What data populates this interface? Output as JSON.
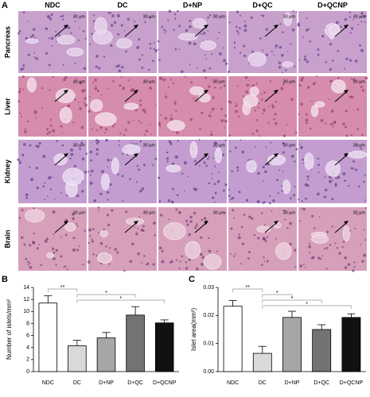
{
  "histology": {
    "panel": "A",
    "columns": [
      "NDC",
      "DC",
      "D+NP",
      "D+QC",
      "D+QCNP"
    ],
    "rows": [
      {
        "label": "Pancreas",
        "scale_labels": [
          "30 μm",
          "30 μm",
          "30 μm",
          "30 μm",
          "30 μm"
        ]
      },
      {
        "label": "Liver",
        "scale_labels": [
          "30 μm",
          "30 μm",
          "30 μm",
          "30 μm",
          "30 μm"
        ]
      },
      {
        "label": "Kidney",
        "scale_labels": [
          "30 μm",
          "30 μm",
          "30 μm",
          "30 μm",
          "30 μm"
        ]
      },
      {
        "label": "Brain",
        "scale_labels": [
          "30 μm",
          "30 μm",
          "30 μm",
          "30 μm",
          "30 μm"
        ]
      }
    ]
  },
  "chart_data": [
    {
      "type": "bar",
      "panel": "B",
      "ylabel": "Number of islets/mm²",
      "categories": [
        "NDC",
        "DC",
        "D+NP",
        "D+QC",
        "D+QCNP"
      ],
      "values": [
        11.4,
        4.3,
        5.6,
        9.4,
        8.1
      ],
      "errors": [
        1.2,
        0.9,
        0.9,
        1.4,
        0.5
      ],
      "colors": [
        "#ffffff",
        "#d9d9d9",
        "#a6a6a6",
        "#737373",
        "#111111"
      ],
      "ylim": [
        0,
        14
      ],
      "yticks": [
        0,
        2,
        4,
        6,
        8,
        10,
        12,
        14
      ],
      "significance": [
        {
          "label": "**",
          "pair": [
            0,
            1
          ]
        },
        {
          "label": "*",
          "pair": [
            1,
            3
          ]
        },
        {
          "label": "*",
          "pair": [
            1,
            4
          ]
        }
      ]
    },
    {
      "type": "bar",
      "panel": "C",
      "ylabel": "Islet area(mm²)",
      "categories": [
        "NDC",
        "DC",
        "D+NP",
        "D+QC",
        "D+QCNP"
      ],
      "values": [
        0.0233,
        0.0065,
        0.0193,
        0.015,
        0.0193
      ],
      "errors": [
        0.002,
        0.0025,
        0.0022,
        0.0017,
        0.0013
      ],
      "colors": [
        "#ffffff",
        "#d9d9d9",
        "#a6a6a6",
        "#737373",
        "#111111"
      ],
      "ylim": [
        0,
        0.03
      ],
      "yticks": [
        {
          "value": 0,
          "label": "0.00"
        },
        0.01,
        0.02,
        0.03
      ],
      "significance": [
        {
          "label": "**",
          "pair": [
            0,
            1
          ]
        },
        {
          "label": "*",
          "pair": [
            1,
            2
          ]
        },
        {
          "label": "*",
          "pair": [
            1,
            3
          ]
        },
        {
          "label": "*",
          "pair": [
            1,
            4
          ]
        }
      ]
    }
  ]
}
